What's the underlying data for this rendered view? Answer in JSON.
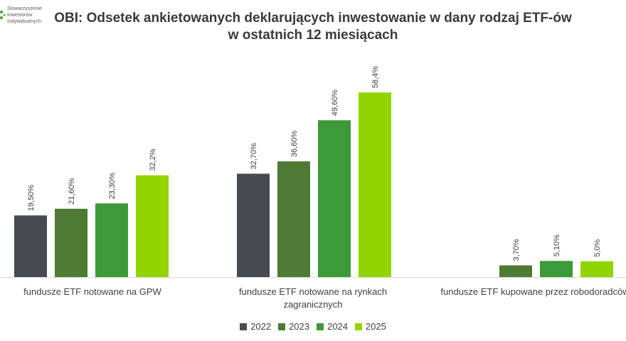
{
  "logo": {
    "lines": [
      "Stowarzyszenie",
      "Inwestorów",
      "Indywidualnych"
    ],
    "accent_color": "#5aa832"
  },
  "chart_data": {
    "type": "bar",
    "title_lines": [
      "OBI: Odsetek ankietowanych deklarujących inwestowanie w dany rodzaj ETF-ów",
      "w ostatnich 12 miesiącach"
    ],
    "categories": [
      "fundusze ETF notowane na GPW",
      "fundusze ETF notowane na rynkach zagranicznych",
      "fundusze ETF kupowane przez robodoradców"
    ],
    "category_label_lines": [
      [
        "fundusze ETF notowane na GPW"
      ],
      [
        "fundusze ETF notowane na rynkach",
        "zagranicznych"
      ],
      [
        "fundusze ETF kupowane przez robodoradców"
      ]
    ],
    "series": [
      {
        "name": "2022",
        "color": "#454b50",
        "values": [
          19.5,
          32.7,
          null
        ],
        "labels": [
          "19,50%",
          "32,70%",
          ""
        ]
      },
      {
        "name": "2023",
        "color": "#4f7a34",
        "values": [
          21.6,
          36.6,
          3.7
        ],
        "labels": [
          "21,60%",
          "36,60%",
          "3,70%"
        ]
      },
      {
        "name": "2024",
        "color": "#3d9a39",
        "values": [
          23.3,
          49.6,
          5.1
        ],
        "labels": [
          "23,30%",
          "49,60%",
          "5,10%"
        ]
      },
      {
        "name": "2025",
        "color": "#92d400",
        "values": [
          32.2,
          58.4,
          5.0
        ],
        "labels": [
          "32,2%",
          "58,4%",
          "5,0%"
        ]
      }
    ],
    "ylim": [
      0,
      60
    ],
    "grid": false,
    "legend_position": "bottom"
  }
}
